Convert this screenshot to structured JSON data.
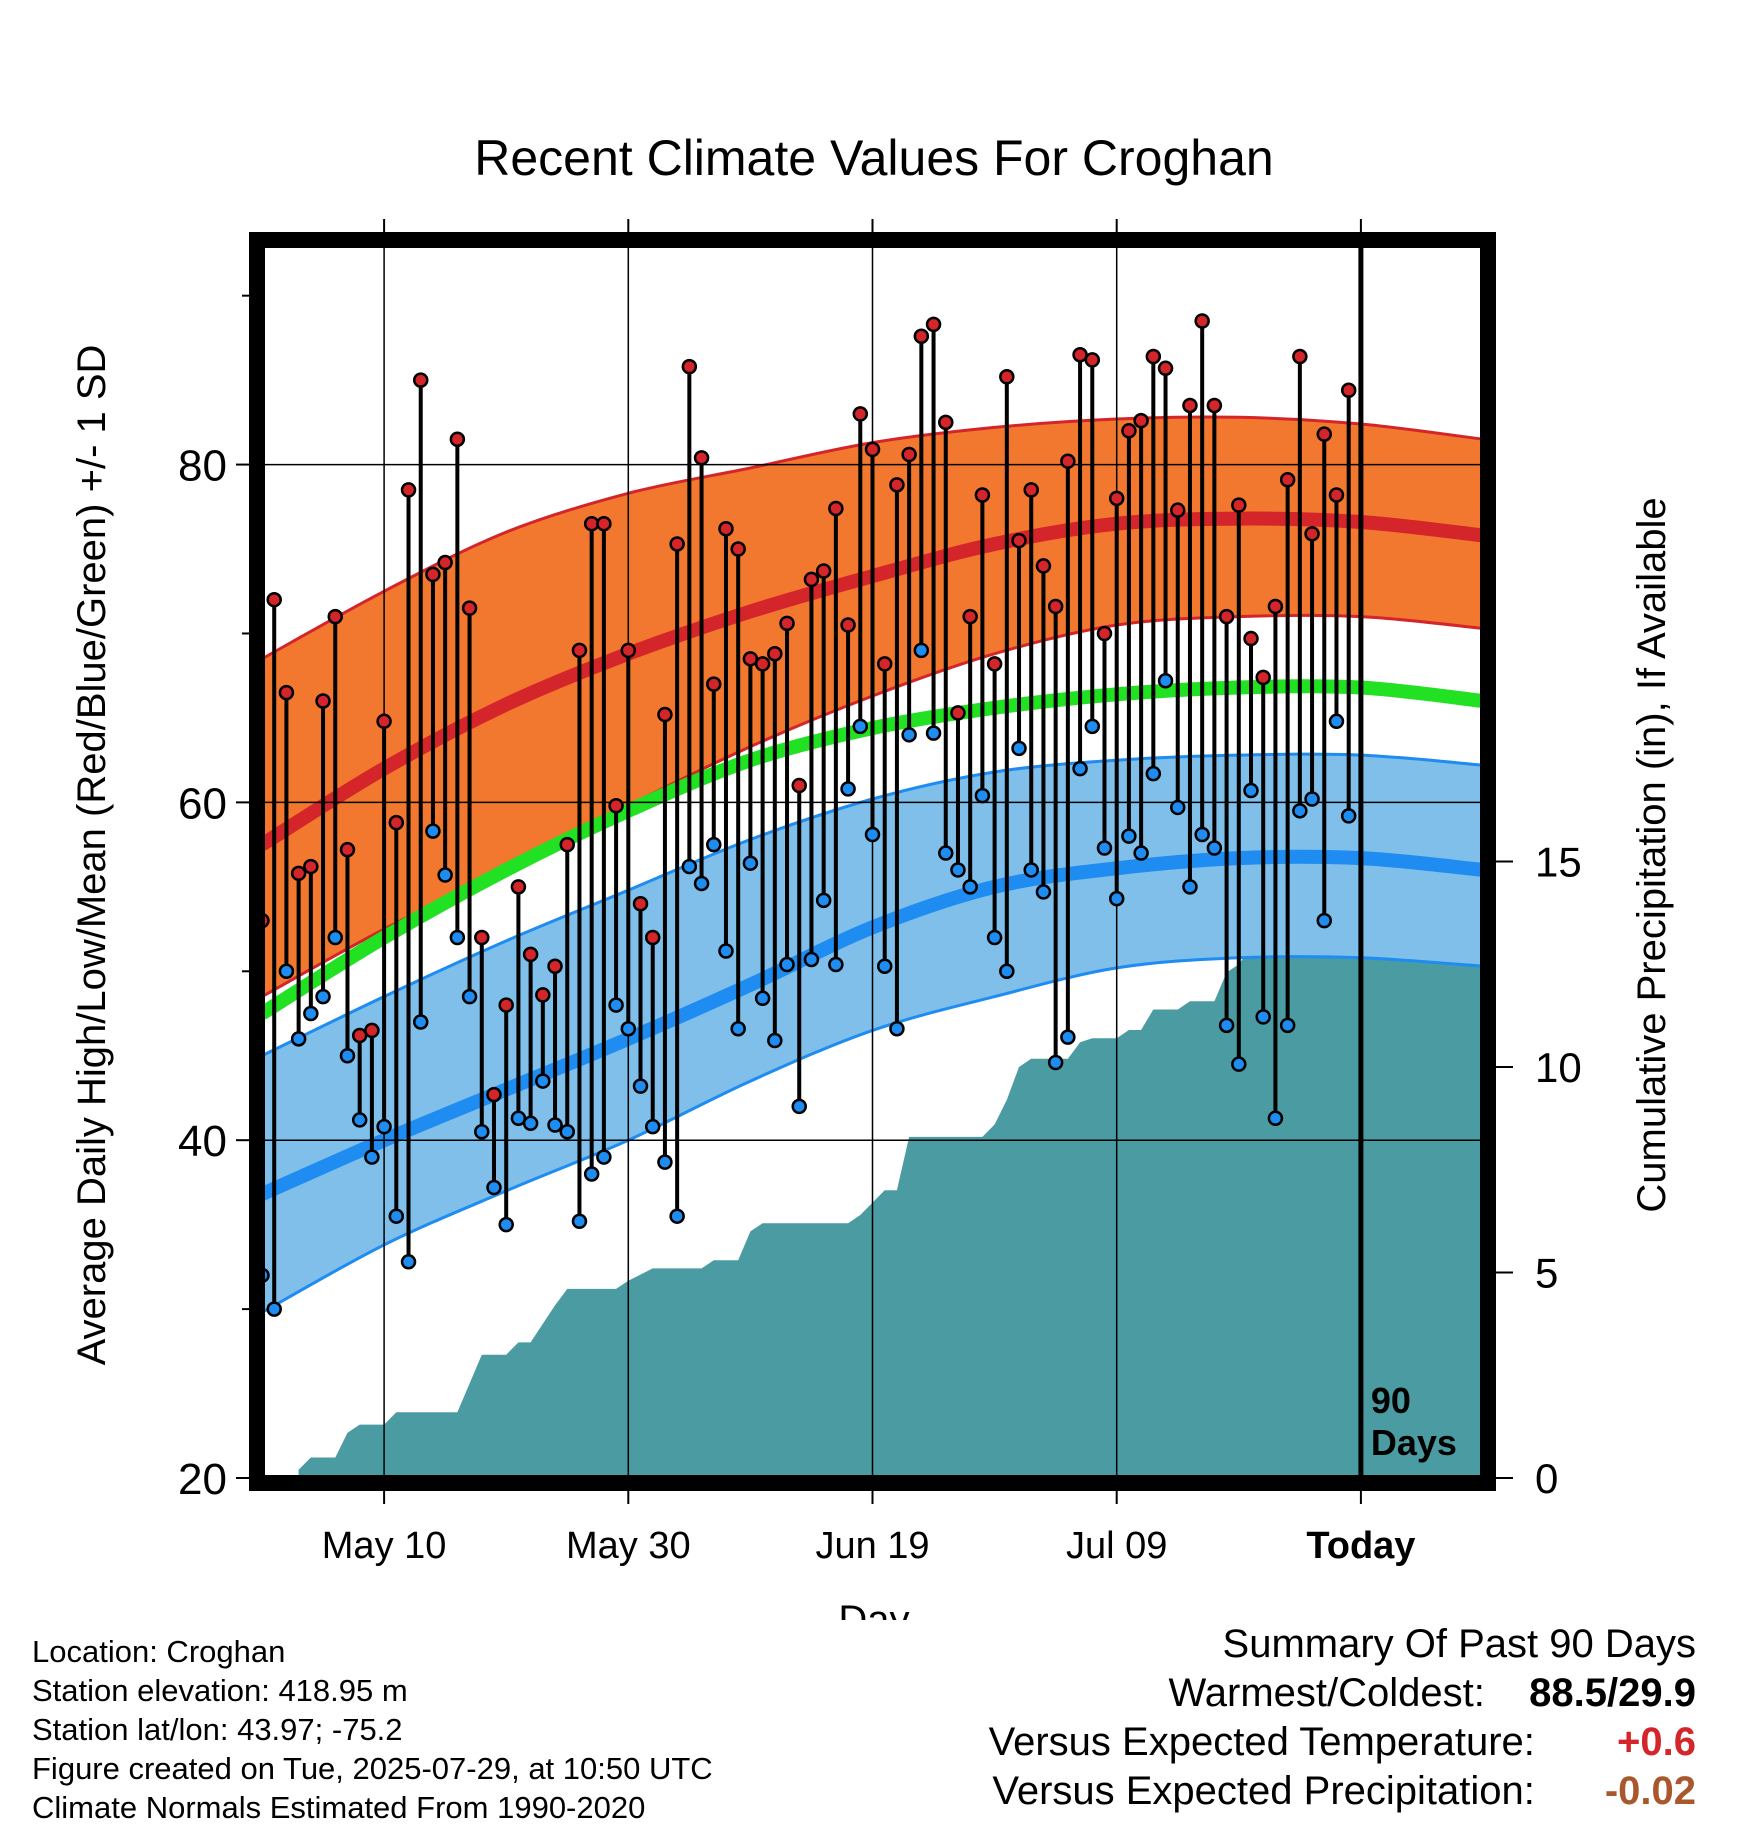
{
  "chart_data": {
    "type": "line",
    "title": "Recent Climate Values For Croghan",
    "xlabel": "Day",
    "ylabel": "Average Daily High/Low/Mean (Red/Blue/Green) +/- 1 SD",
    "y2label": "Cumulative Precipitation (in), If Available",
    "ylim": [
      20,
      93
    ],
    "y_ticks": [
      20,
      40,
      60,
      80
    ],
    "y2lim": [
      0,
      30
    ],
    "y2_ticks": [
      0,
      5,
      10,
      15
    ],
    "x_range_days": [
      0,
      100
    ],
    "x_ticks": [
      {
        "label": "May 10",
        "day": 10
      },
      {
        "label": "May 30",
        "day": 30
      },
      {
        "label": "Jun 19",
        "day": 50
      },
      {
        "label": "Jul 09",
        "day": 70
      },
      {
        "label": "Today",
        "day": 90
      }
    ],
    "today_marker": {
      "day": 90,
      "label": "90 Days"
    },
    "grid": true,
    "normals": {
      "day": [
        0,
        10,
        20,
        30,
        40,
        50,
        60,
        70,
        80,
        90,
        100
      ],
      "high_mean": [
        57.5,
        62.0,
        65.8,
        68.8,
        71.3,
        73.4,
        75.3,
        76.5,
        76.8,
        76.6,
        75.8
      ],
      "high_upper": [
        68.5,
        72.5,
        76.0,
        78.3,
        79.8,
        81.3,
        82.2,
        82.7,
        82.8,
        82.4,
        81.5
      ],
      "high_lower": [
        48.5,
        52.5,
        56.0,
        59.8,
        63.3,
        66.3,
        68.8,
        70.5,
        71.0,
        71.0,
        70.3
      ],
      "mean": [
        47.5,
        52.0,
        56.0,
        59.5,
        62.5,
        64.4,
        65.6,
        66.4,
        66.8,
        66.8,
        66.0
      ],
      "low_mean": [
        36.8,
        40.0,
        43.0,
        46.0,
        49.2,
        52.6,
        55.0,
        56.1,
        56.7,
        56.7,
        56.0
      ],
      "low_upper": [
        45.0,
        48.5,
        51.8,
        54.8,
        57.8,
        60.2,
        61.8,
        62.5,
        62.8,
        62.8,
        62.2
      ],
      "low_lower": [
        29.8,
        33.8,
        37.0,
        40.0,
        43.5,
        46.5,
        48.5,
        50.2,
        50.8,
        50.8,
        50.3
      ]
    },
    "daily": [
      {
        "day": 0,
        "high": 53.0,
        "low": 32.0
      },
      {
        "day": 1,
        "high": 72.0,
        "low": 30.0
      },
      {
        "day": 2,
        "high": 66.5,
        "low": 50.0
      },
      {
        "day": 3,
        "high": 55.8,
        "low": 46.0
      },
      {
        "day": 4,
        "high": 56.2,
        "low": 47.5
      },
      {
        "day": 5,
        "high": 66.0,
        "low": 48.5
      },
      {
        "day": 6,
        "high": 71.0,
        "low": 52.0
      },
      {
        "day": 7,
        "high": 57.2,
        "low": 45.0
      },
      {
        "day": 8,
        "high": 46.2,
        "low": 41.2
      },
      {
        "day": 9,
        "high": 46.5,
        "low": 39.0
      },
      {
        "day": 10,
        "high": 64.8,
        "low": 40.8
      },
      {
        "day": 11,
        "high": 58.8,
        "low": 35.5
      },
      {
        "day": 12,
        "high": 78.5,
        "low": 32.8
      },
      {
        "day": 13,
        "high": 85.0,
        "low": 47.0
      },
      {
        "day": 14,
        "high": 73.5,
        "low": 58.3
      },
      {
        "day": 15,
        "high": 74.2,
        "low": 55.7
      },
      {
        "day": 16,
        "high": 81.5,
        "low": 52.0
      },
      {
        "day": 17,
        "high": 71.5,
        "low": 48.5
      },
      {
        "day": 18,
        "high": 52.0,
        "low": 40.5
      },
      {
        "day": 19,
        "high": 42.7,
        "low": 37.2
      },
      {
        "day": 20,
        "high": 48.0,
        "low": 35.0
      },
      {
        "day": 21,
        "high": 55.0,
        "low": 41.3
      },
      {
        "day": 22,
        "high": 51.0,
        "low": 41.0
      },
      {
        "day": 23,
        "high": 48.6,
        "low": 43.5
      },
      {
        "day": 24,
        "high": 50.3,
        "low": 40.9
      },
      {
        "day": 25,
        "high": 57.5,
        "low": 40.5
      },
      {
        "day": 26,
        "high": 69.0,
        "low": 35.2
      },
      {
        "day": 27,
        "high": 76.5,
        "low": 38.0
      },
      {
        "day": 28,
        "high": 76.5,
        "low": 39.0
      },
      {
        "day": 29,
        "high": 59.8,
        "low": 48.0
      },
      {
        "day": 30,
        "high": 69.0,
        "low": 46.6
      },
      {
        "day": 31,
        "high": 54.0,
        "low": 43.2
      },
      {
        "day": 32,
        "high": 52.0,
        "low": 40.8
      },
      {
        "day": 33,
        "high": 65.2,
        "low": 38.7
      },
      {
        "day": 34,
        "high": 75.3,
        "low": 35.5
      },
      {
        "day": 35,
        "high": 85.8,
        "low": 56.2
      },
      {
        "day": 36,
        "high": 80.4,
        "low": 55.2
      },
      {
        "day": 37,
        "high": 67.0,
        "low": 57.5
      },
      {
        "day": 38,
        "high": 76.2,
        "low": 51.2
      },
      {
        "day": 39,
        "high": 75.0,
        "low": 46.6
      },
      {
        "day": 40,
        "high": 68.5,
        "low": 56.4
      },
      {
        "day": 41,
        "high": 68.2,
        "low": 48.4
      },
      {
        "day": 42,
        "high": 68.8,
        "low": 45.9
      },
      {
        "day": 43,
        "high": 70.6,
        "low": 50.4
      },
      {
        "day": 44,
        "high": 61.0,
        "low": 42.0
      },
      {
        "day": 45,
        "high": 73.2,
        "low": 50.7
      },
      {
        "day": 46,
        "high": 73.7,
        "low": 54.2
      },
      {
        "day": 47,
        "high": 77.4,
        "low": 50.4
      },
      {
        "day": 48,
        "high": 70.5,
        "low": 60.8
      },
      {
        "day": 49,
        "high": 83.0,
        "low": 64.5
      },
      {
        "day": 50,
        "high": 80.9,
        "low": 58.1
      },
      {
        "day": 51,
        "high": 68.2,
        "low": 50.3
      },
      {
        "day": 52,
        "high": 78.8,
        "low": 46.6
      },
      {
        "day": 53,
        "high": 80.6,
        "low": 64.0
      },
      {
        "day": 54,
        "high": 87.6,
        "low": 69.0
      },
      {
        "day": 55,
        "high": 88.3,
        "low": 64.1
      },
      {
        "day": 56,
        "high": 82.5,
        "low": 57.0
      },
      {
        "day": 57,
        "high": 65.3,
        "low": 56.0
      },
      {
        "day": 58,
        "high": 71.0,
        "low": 55.0
      },
      {
        "day": 59,
        "high": 78.2,
        "low": 60.4
      },
      {
        "day": 60,
        "high": 68.2,
        "low": 52.0
      },
      {
        "day": 61,
        "high": 85.2,
        "low": 50.0
      },
      {
        "day": 62,
        "high": 75.5,
        "low": 63.2
      },
      {
        "day": 63,
        "high": 78.5,
        "low": 56.0
      },
      {
        "day": 64,
        "high": 74.0,
        "low": 54.7
      },
      {
        "day": 65,
        "high": 71.6,
        "low": 44.6
      },
      {
        "day": 66,
        "high": 80.2,
        "low": 46.1
      },
      {
        "day": 67,
        "high": 86.5,
        "low": 62.0
      },
      {
        "day": 68,
        "high": 86.2,
        "low": 64.5
      },
      {
        "day": 69,
        "high": 70.0,
        "low": 57.3
      },
      {
        "day": 70,
        "high": 78.0,
        "low": 54.3
      },
      {
        "day": 71,
        "high": 82.0,
        "low": 58.0
      },
      {
        "day": 72,
        "high": 82.6,
        "low": 57.0
      },
      {
        "day": 73,
        "high": 86.4,
        "low": 61.7
      },
      {
        "day": 74,
        "high": 85.7,
        "low": 67.2
      },
      {
        "day": 75,
        "high": 77.3,
        "low": 59.7
      },
      {
        "day": 76,
        "high": 83.5,
        "low": 55.0
      },
      {
        "day": 77,
        "high": 88.5,
        "low": 58.1
      },
      {
        "day": 78,
        "high": 83.5,
        "low": 57.3
      },
      {
        "day": 79,
        "high": 71.0,
        "low": 46.8
      },
      {
        "day": 80,
        "high": 77.6,
        "low": 44.5
      },
      {
        "day": 81,
        "high": 69.7,
        "low": 60.7
      },
      {
        "day": 82,
        "high": 67.4,
        "low": 47.3
      },
      {
        "day": 83,
        "high": 71.6,
        "low": 41.3
      },
      {
        "day": 84,
        "high": 79.1,
        "low": 46.8
      },
      {
        "day": 85,
        "high": 86.4,
        "low": 59.5
      },
      {
        "day": 86,
        "high": 75.9,
        "low": 60.2
      },
      {
        "day": 87,
        "high": 81.8,
        "low": 53.0
      },
      {
        "day": 88,
        "high": 78.2,
        "low": 64.8
      },
      {
        "day": 89,
        "high": 84.4,
        "low": 59.2
      }
    ],
    "precip_cumulative": [
      {
        "day": 3,
        "in": 0.2
      },
      {
        "day": 4,
        "in": 0.5
      },
      {
        "day": 6,
        "in": 0.5
      },
      {
        "day": 7,
        "in": 1.1
      },
      {
        "day": 8,
        "in": 1.3
      },
      {
        "day": 10,
        "in": 1.3
      },
      {
        "day": 11,
        "in": 1.6
      },
      {
        "day": 16,
        "in": 1.6
      },
      {
        "day": 18,
        "in": 3.0
      },
      {
        "day": 20,
        "in": 3.0
      },
      {
        "day": 21,
        "in": 3.3
      },
      {
        "day": 22,
        "in": 3.3
      },
      {
        "day": 24,
        "in": 4.2
      },
      {
        "day": 25,
        "in": 4.6
      },
      {
        "day": 29,
        "in": 4.6
      },
      {
        "day": 30,
        "in": 4.8
      },
      {
        "day": 32,
        "in": 5.1
      },
      {
        "day": 36,
        "in": 5.1
      },
      {
        "day": 37,
        "in": 5.3
      },
      {
        "day": 39,
        "in": 5.3
      },
      {
        "day": 40,
        "in": 6.0
      },
      {
        "day": 41,
        "in": 6.2
      },
      {
        "day": 48,
        "in": 6.2
      },
      {
        "day": 49,
        "in": 6.4
      },
      {
        "day": 50,
        "in": 6.7
      },
      {
        "day": 51,
        "in": 7.0
      },
      {
        "day": 52,
        "in": 7.0
      },
      {
        "day": 53,
        "in": 8.3
      },
      {
        "day": 55,
        "in": 8.3
      },
      {
        "day": 59,
        "in": 8.3
      },
      {
        "day": 60,
        "in": 8.6
      },
      {
        "day": 61,
        "in": 9.2
      },
      {
        "day": 62,
        "in": 10.0
      },
      {
        "day": 63,
        "in": 10.2
      },
      {
        "day": 66,
        "in": 10.2
      },
      {
        "day": 67,
        "in": 10.6
      },
      {
        "day": 68,
        "in": 10.7
      },
      {
        "day": 70,
        "in": 10.7
      },
      {
        "day": 71,
        "in": 10.9
      },
      {
        "day": 72,
        "in": 10.9
      },
      {
        "day": 73,
        "in": 11.4
      },
      {
        "day": 75,
        "in": 11.4
      },
      {
        "day": 76,
        "in": 11.6
      },
      {
        "day": 78,
        "in": 11.6
      },
      {
        "day": 79,
        "in": 12.3
      },
      {
        "day": 80,
        "in": 12.5
      },
      {
        "day": 81,
        "in": 12.9
      },
      {
        "day": 84,
        "in": 12.9
      },
      {
        "day": 85,
        "in": 13.2
      },
      {
        "day": 86,
        "in": 13.2
      },
      {
        "day": 88,
        "in": 14.0
      },
      {
        "day": 89,
        "in": 14.0
      },
      {
        "day": 100,
        "in": 14.0
      }
    ],
    "colors": {
      "high_band": "#f2782f",
      "high_line": "#d4252a",
      "mean_line": "#22e022",
      "low_band": "#7fbfea",
      "low_line": "#1e8cf0",
      "precip": "#4b9ba3",
      "high_marker": "#d4252a",
      "low_marker": "#1e8cf0"
    }
  },
  "footer": {
    "location": "Location: Croghan",
    "elevation": "Station elevation: 418.95 m",
    "latlon": "Station lat/lon: 43.97; -75.2",
    "created": "Figure created on Tue, 2025-07-29, at 10:50 UTC",
    "normals": "Climate Normals Estimated From 1990-2020"
  },
  "summary": {
    "title": "Summary Of Past 90 Days",
    "warmest_coldest_label": "Warmest/Coldest:",
    "warmest_coldest_value": "88.5/29.9",
    "temp_label": "Versus Expected Temperature:",
    "temp_value": "+0.6",
    "temp_color": "#d4252a",
    "precip_label": "Versus Expected Precipitation:",
    "precip_value": "-0.02",
    "precip_color": "#a8582c"
  }
}
